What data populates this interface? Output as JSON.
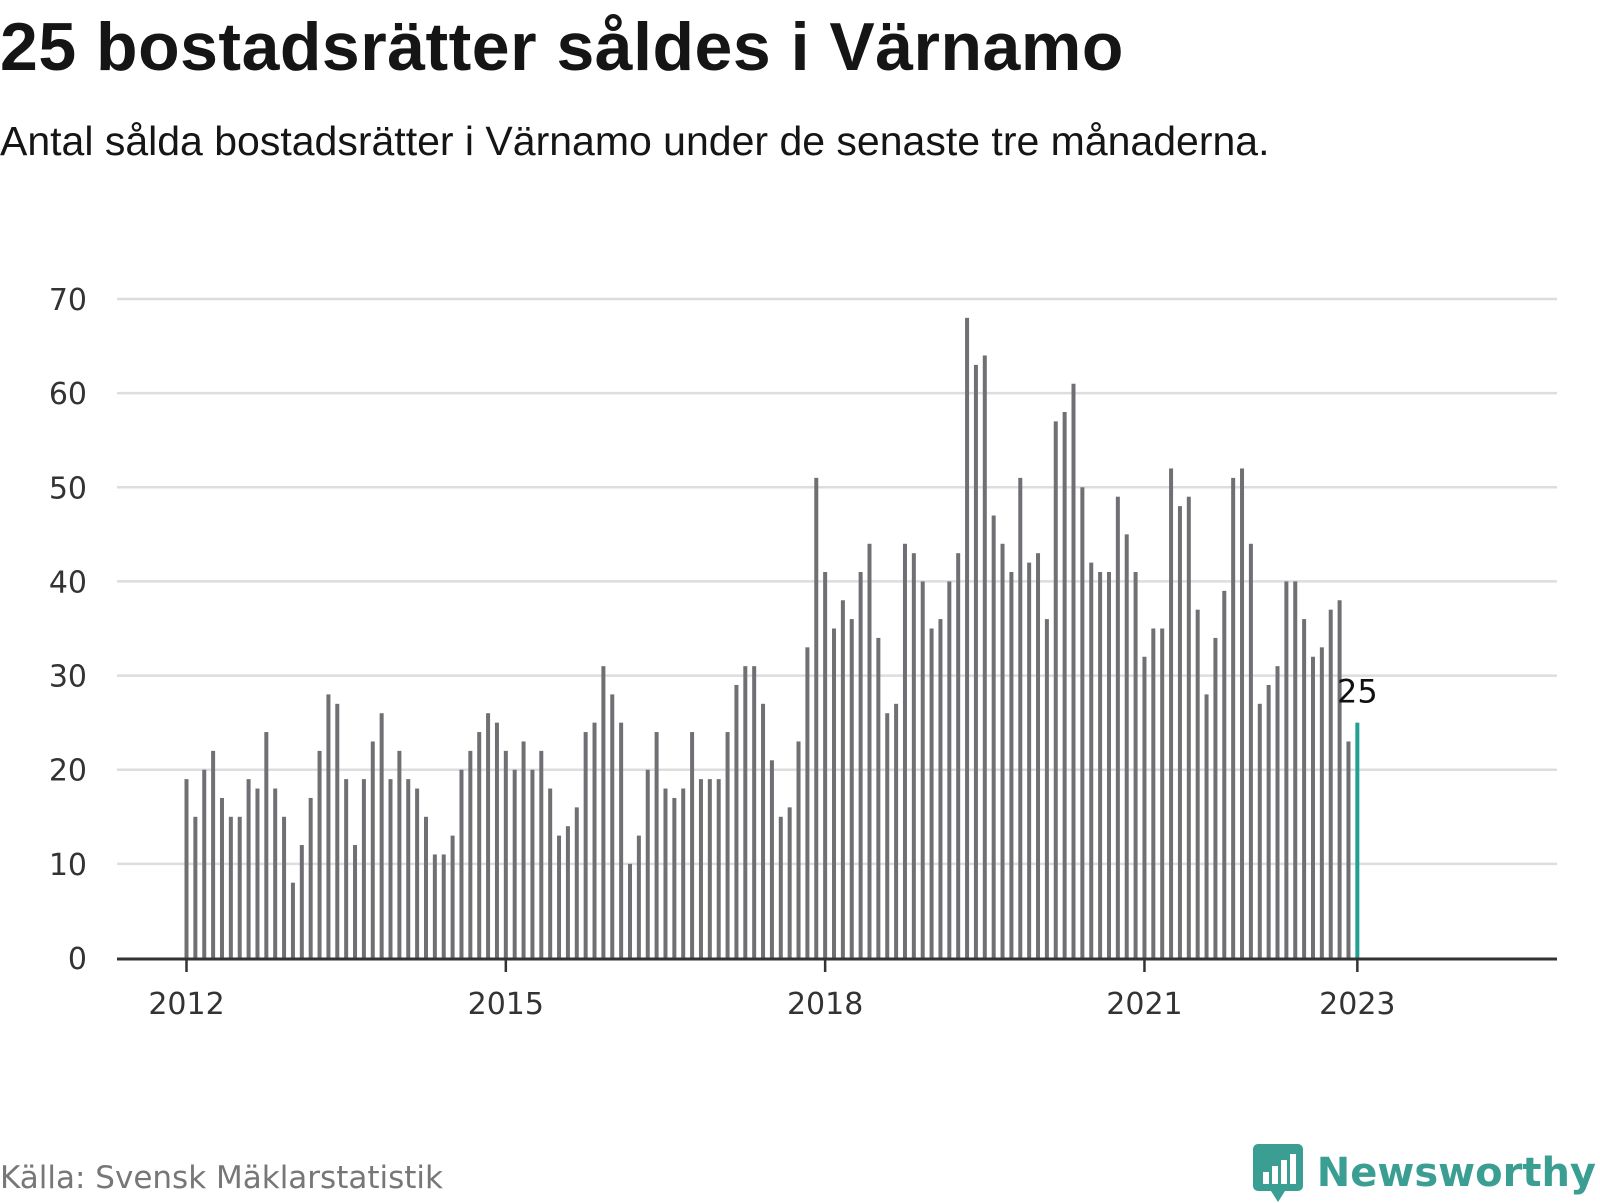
{
  "title": "25 bostadsrätter såldes i Värnamo",
  "subtitle": "Antal sålda bostadsrätter i Värnamo under de senaste tre månaderna.",
  "source": "Källa: Svensk Mäklarstatistik",
  "brand": {
    "name": "Newsworthy",
    "icon": "chart-speech-bubble-icon",
    "color": "#3a9e93"
  },
  "colors": {
    "bar": "#6f6f74",
    "highlight": "#22a193",
    "grid": "#dddddd",
    "axis": "#333333"
  },
  "chart_data": {
    "type": "bar",
    "title": "25 bostadsrätter såldes i Värnamo",
    "subtitle": "Antal sålda bostadsrätter i Värnamo under de senaste tre månaderna.",
    "xlabel": "",
    "ylabel": "",
    "x_start": "2012-01",
    "x_interval": "month",
    "ylim": [
      0,
      70
    ],
    "yticks": [
      0,
      10,
      20,
      30,
      40,
      50,
      60,
      70
    ],
    "xticks": [
      {
        "label": "2012",
        "x": "2012-01"
      },
      {
        "label": "2015",
        "x": "2015-01"
      },
      {
        "label": "2018",
        "x": "2018-01"
      },
      {
        "label": "2021",
        "x": "2021-01"
      },
      {
        "label": "2023",
        "x": "2023-01"
      }
    ],
    "grid": true,
    "values": [
      19,
      15,
      20,
      22,
      17,
      15,
      15,
      19,
      18,
      24,
      18,
      15,
      8,
      12,
      17,
      22,
      28,
      27,
      19,
      12,
      19,
      23,
      26,
      19,
      22,
      19,
      18,
      15,
      11,
      11,
      13,
      20,
      22,
      24,
      26,
      25,
      22,
      20,
      23,
      20,
      22,
      18,
      13,
      14,
      16,
      24,
      25,
      31,
      28,
      25,
      10,
      13,
      20,
      24,
      18,
      17,
      18,
      24,
      19,
      19,
      19,
      24,
      29,
      31,
      31,
      27,
      21,
      15,
      16,
      23,
      33,
      51,
      41,
      35,
      38,
      36,
      41,
      44,
      34,
      26,
      27,
      44,
      43,
      40,
      35,
      36,
      40,
      43,
      68,
      63,
      64,
      47,
      44,
      41,
      51,
      42,
      43,
      36,
      57,
      58,
      61,
      50,
      42,
      41,
      41,
      49,
      45,
      41,
      32,
      35,
      35,
      52,
      48,
      49,
      37,
      28,
      34,
      39,
      51,
      52,
      44,
      27,
      29,
      31,
      40,
      40,
      36,
      32,
      33,
      37,
      38,
      23,
      25
    ],
    "highlight": {
      "x": "2023-01",
      "value": 25,
      "label": "25"
    }
  }
}
